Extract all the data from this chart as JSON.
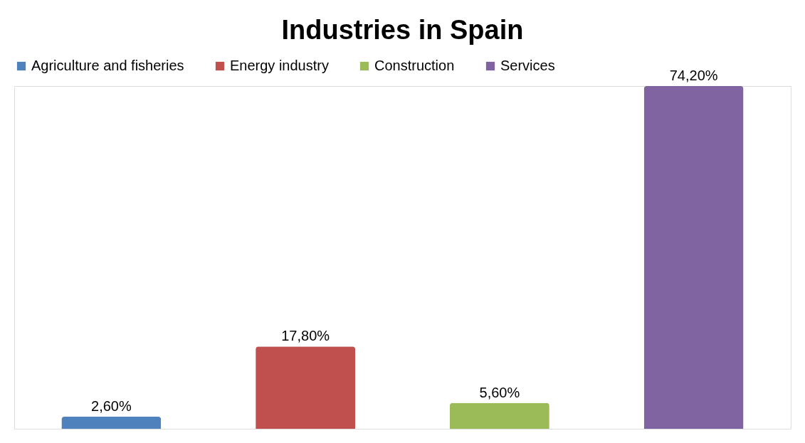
{
  "chart_data": {
    "type": "bar",
    "title": "Industries in Spain",
    "categories": [
      null,
      null,
      null,
      null
    ],
    "series": [
      {
        "name": "Agriculture and fisheries",
        "color": "#4f81bd",
        "values": [
          2.6,
          null,
          null,
          null
        ],
        "value_labels": [
          "2,60%",
          null,
          null,
          null
        ]
      },
      {
        "name": "Energy industry",
        "color": "#c0504d",
        "values": [
          null,
          17.8,
          null,
          null
        ],
        "value_labels": [
          null,
          "17,80%",
          null,
          null
        ]
      },
      {
        "name": "Construction",
        "color": "#9bbb59",
        "values": [
          null,
          null,
          5.6,
          null
        ],
        "value_labels": [
          null,
          null,
          "5,60%",
          null
        ]
      },
      {
        "name": "Services",
        "color": "#8064a2",
        "values": [
          null,
          null,
          null,
          74.2
        ],
        "value_labels": [
          null,
          null,
          null,
          "74,20%"
        ]
      }
    ],
    "stacked": true,
    "legend": "top",
    "tick_labels": false
  }
}
